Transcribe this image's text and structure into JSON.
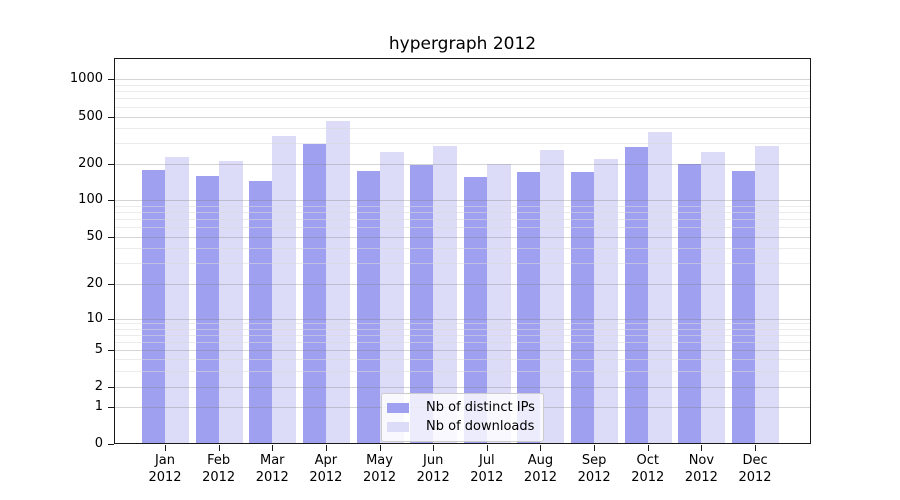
{
  "figure": {
    "title": "hypergraph 2012"
  },
  "chart_data": {
    "type": "bar",
    "title": "hypergraph 2012",
    "categories": [
      "Jan",
      "Feb",
      "Mar",
      "Apr",
      "May",
      "Jun",
      "Jul",
      "Aug",
      "Sep",
      "Oct",
      "Nov",
      "Dec"
    ],
    "category_year": "2012",
    "series": [
      {
        "name": "Nb of distinct IPs",
        "color": "#a0a0f0",
        "values": [
          180,
          160,
          145,
          295,
          175,
          195,
          155,
          172,
          172,
          275,
          200,
          176
        ]
      },
      {
        "name": "Nb of downloads",
        "color": "#dcdcf8",
        "values": [
          230,
          210,
          345,
          460,
          250,
          285,
          200,
          260,
          222,
          372,
          250,
          285
        ]
      }
    ],
    "xlabel": "",
    "ylabel": "",
    "yscale": "symlog",
    "yticks": [
      0,
      1,
      2,
      5,
      10,
      20,
      50,
      100,
      200,
      500,
      1000
    ],
    "ylim": [
      0,
      1500
    ],
    "grid": true,
    "legend_position": "lower center"
  }
}
